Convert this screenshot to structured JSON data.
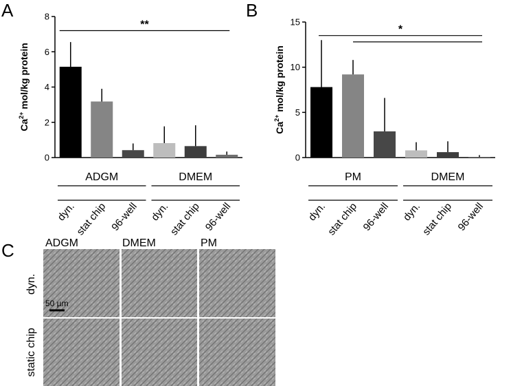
{
  "panel_c": {
    "label": "C",
    "columns": [
      "ADGM",
      "DMEM",
      "PM"
    ],
    "rows": [
      "dyn.",
      "static chip"
    ],
    "scale_bar_label": "50 µm"
  },
  "chart_data": [
    {
      "panel": "A",
      "type": "bar",
      "ylabel_main": "Ca",
      "ylabel_sup": "2+",
      "ylabel_rest": " mol/kg protein",
      "ylim": [
        0,
        8
      ],
      "yticks": [
        0,
        2,
        4,
        6,
        8
      ],
      "ytick_labels": [
        "0",
        "2",
        "4",
        "6",
        "8"
      ],
      "groups": [
        {
          "label": "ADGM",
          "categories": [
            "dyn.",
            "stat chip",
            "96-well"
          ]
        },
        {
          "label": "DMEM",
          "categories": [
            "dyn.",
            "stat chip",
            "96-well"
          ]
        }
      ],
      "values": [
        5.15,
        3.18,
        0.42,
        0.82,
        0.65,
        0.16
      ],
      "errors": [
        1.4,
        0.72,
        0.38,
        0.95,
        1.18,
        0.18
      ],
      "colors": [
        "#000000",
        "#858585",
        "#474747",
        "#bdbdbd",
        "#3d3d3d",
        "#6e6e6e"
      ],
      "significance": [
        {
          "label": "**",
          "from": 0,
          "to": 5,
          "level": 7.2
        }
      ]
    },
    {
      "panel": "B",
      "type": "bar",
      "ylabel_main": "Ca",
      "ylabel_sup": "2+",
      "ylabel_rest": " mol/kg protein",
      "ylim": [
        0,
        15
      ],
      "yticks": [
        0,
        5,
        10,
        15
      ],
      "ytick_labels": [
        "0",
        "5",
        "10",
        "15"
      ],
      "groups": [
        {
          "label": "PM",
          "categories": [
            "dyn.",
            "stat chip",
            "96-well"
          ]
        },
        {
          "label": "DMEM",
          "categories": [
            "dyn.",
            "stat chip",
            "96-well"
          ]
        }
      ],
      "values": [
        7.8,
        9.2,
        2.9,
        0.8,
        0.6,
        0.07
      ],
      "errors": [
        5.2,
        1.6,
        3.7,
        0.9,
        1.2,
        0.2
      ],
      "colors": [
        "#000000",
        "#858585",
        "#474747",
        "#bdbdbd",
        "#3d3d3d",
        "#6e6e6e"
      ],
      "significance": [
        {
          "label": "*",
          "from": 0,
          "to": 5,
          "level": 13.5
        },
        {
          "label": "",
          "from": 1,
          "to": 5,
          "level": 12.8
        }
      ]
    }
  ]
}
